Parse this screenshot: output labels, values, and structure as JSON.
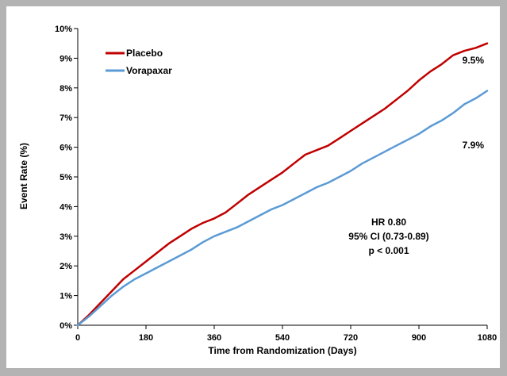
{
  "chart_data": {
    "type": "line",
    "title": "",
    "xlabel": "Time from Randomization (Days)",
    "ylabel": "Event Rate (%)",
    "xlim": [
      0,
      1080
    ],
    "ylim": [
      0,
      10
    ],
    "x_ticks": [
      "0",
      "180",
      "360",
      "540",
      "720",
      "900",
      "1080"
    ],
    "y_ticks": [
      "0%",
      "1%",
      "2%",
      "3%",
      "4%",
      "5%",
      "6%",
      "7%",
      "8%",
      "9%",
      "10%"
    ],
    "grid": false,
    "legend_position": "top-left",
    "series": [
      {
        "name": "Placebo",
        "color": "#c00000",
        "end_label": "9.5%",
        "x": [
          0,
          30,
          60,
          90,
          120,
          150,
          180,
          210,
          240,
          270,
          300,
          330,
          360,
          390,
          420,
          450,
          480,
          510,
          540,
          570,
          600,
          630,
          660,
          690,
          720,
          750,
          780,
          810,
          840,
          870,
          900,
          930,
          960,
          990,
          1020,
          1050,
          1080
        ],
        "y": [
          0,
          0.35,
          0.75,
          1.15,
          1.55,
          1.85,
          2.15,
          2.45,
          2.75,
          3.0,
          3.25,
          3.45,
          3.6,
          3.8,
          4.1,
          4.4,
          4.65,
          4.9,
          5.15,
          5.45,
          5.75,
          5.9,
          6.05,
          6.3,
          6.55,
          6.8,
          7.05,
          7.3,
          7.6,
          7.9,
          8.25,
          8.55,
          8.8,
          9.1,
          9.25,
          9.35,
          9.5
        ]
      },
      {
        "name": "Vorapaxar",
        "color": "#5b9bd5",
        "end_label": "7.9%",
        "x": [
          0,
          30,
          60,
          90,
          120,
          150,
          180,
          210,
          240,
          270,
          300,
          330,
          360,
          390,
          420,
          450,
          480,
          510,
          540,
          570,
          600,
          630,
          660,
          690,
          720,
          750,
          780,
          810,
          840,
          870,
          900,
          930,
          960,
          990,
          1020,
          1050,
          1080
        ],
        "y": [
          0,
          0.3,
          0.65,
          1.0,
          1.3,
          1.55,
          1.75,
          1.95,
          2.15,
          2.35,
          2.55,
          2.8,
          3.0,
          3.15,
          3.3,
          3.5,
          3.7,
          3.9,
          4.05,
          4.25,
          4.45,
          4.65,
          4.8,
          5.0,
          5.2,
          5.45,
          5.65,
          5.85,
          6.05,
          6.25,
          6.45,
          6.7,
          6.9,
          7.15,
          7.45,
          7.65,
          7.9
        ]
      }
    ],
    "annotation": {
      "lines": [
        "HR 0.80",
        "95% CI (0.73-0.89)",
        "p < 0.001"
      ]
    }
  }
}
